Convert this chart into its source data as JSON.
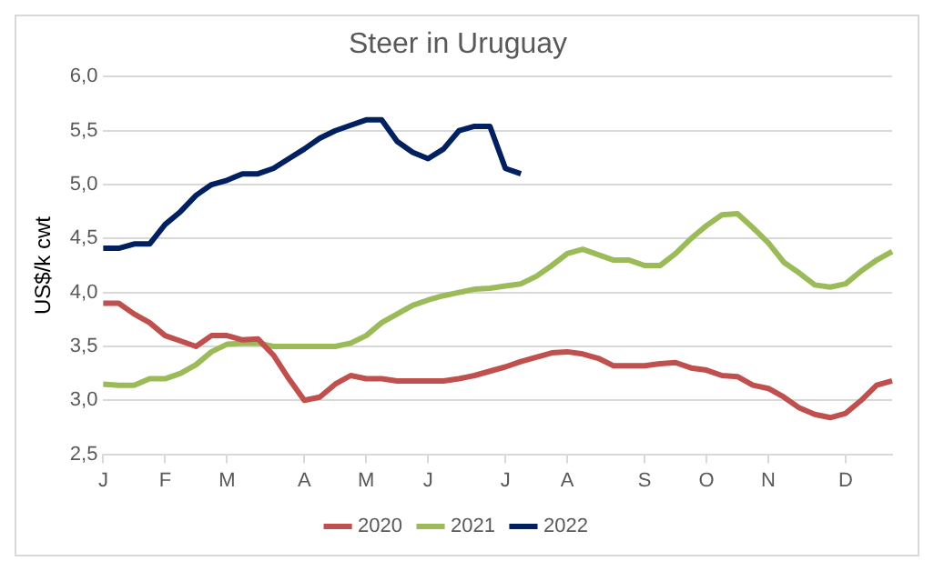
{
  "chart_data": {
    "type": "line",
    "title": "Steer in Uruguay",
    "ylabel": "US$/k cwt",
    "categories": [
      "J",
      null,
      null,
      null,
      "F",
      null,
      null,
      null,
      "M",
      null,
      null,
      null,
      null,
      "A",
      null,
      null,
      null,
      "M",
      null,
      null,
      null,
      "J",
      null,
      null,
      null,
      null,
      "J",
      null,
      null,
      null,
      "A",
      null,
      null,
      null,
      null,
      "S",
      null,
      null,
      null,
      "O",
      null,
      null,
      null,
      "N",
      null,
      null,
      null,
      null,
      "D",
      null,
      null,
      null
    ],
    "series": [
      {
        "name": "2020",
        "color": "#c0504d",
        "values": [
          3.9,
          3.9,
          3.8,
          3.72,
          3.6,
          3.55,
          3.5,
          3.6,
          3.6,
          3.56,
          3.57,
          3.42,
          3.2,
          3.0,
          3.03,
          3.15,
          3.23,
          3.2,
          3.2,
          3.18,
          3.18,
          3.18,
          3.18,
          3.2,
          3.23,
          3.27,
          3.31,
          3.36,
          3.4,
          3.44,
          3.45,
          3.43,
          3.39,
          3.32,
          3.32,
          3.32,
          3.34,
          3.35,
          3.3,
          3.28,
          3.23,
          3.22,
          3.14,
          3.11,
          3.03,
          2.93,
          2.87,
          2.84,
          2.88,
          3.0,
          3.14,
          3.18
        ]
      },
      {
        "name": "2021",
        "color": "#9bbb59",
        "values": [
          3.15,
          3.14,
          3.14,
          3.2,
          3.2,
          3.25,
          3.33,
          3.45,
          3.52,
          3.53,
          3.53,
          3.5,
          3.5,
          3.5,
          3.5,
          3.5,
          3.53,
          3.6,
          3.72,
          3.8,
          3.88,
          3.93,
          3.97,
          4.0,
          4.03,
          4.04,
          4.06,
          4.08,
          4.15,
          4.25,
          4.36,
          4.4,
          4.35,
          4.3,
          4.3,
          4.25,
          4.25,
          4.36,
          4.5,
          4.62,
          4.72,
          4.73,
          4.6,
          4.46,
          4.28,
          4.18,
          4.07,
          4.05,
          4.08,
          4.2,
          4.3,
          4.38
        ]
      },
      {
        "name": "2022",
        "color": "#002060",
        "values": [
          4.41,
          4.41,
          4.45,
          4.45,
          4.63,
          4.75,
          4.9,
          5.0,
          5.04,
          5.1,
          5.1,
          5.15,
          5.24,
          5.33,
          5.43,
          5.5,
          5.55,
          5.6,
          5.6,
          5.4,
          5.3,
          5.24,
          5.33,
          5.5,
          5.54,
          5.54,
          5.15,
          5.1,
          null,
          null,
          null,
          null,
          null,
          null,
          null,
          null,
          null,
          null,
          null,
          null,
          null,
          null,
          null,
          null,
          null,
          null,
          null,
          null,
          null,
          null,
          null,
          null
        ]
      }
    ],
    "ylim": [
      2.5,
      6.0
    ],
    "yticks": [
      {
        "value": 2.5,
        "label": "2,5"
      },
      {
        "value": 3.0,
        "label": "3,0"
      },
      {
        "value": 3.5,
        "label": "3,5"
      },
      {
        "value": 4.0,
        "label": "4,0"
      },
      {
        "value": 4.5,
        "label": "4,5"
      },
      {
        "value": 5.0,
        "label": "5,0"
      },
      {
        "value": 5.5,
        "label": "5,5"
      },
      {
        "value": 6.0,
        "label": "6,0"
      }
    ],
    "grid": "y",
    "legend": "bottom",
    "marker": "none",
    "line_style": "solid"
  }
}
